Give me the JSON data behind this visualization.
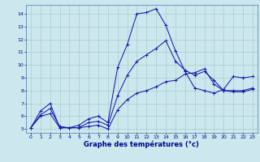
{
  "xlabel": "Graphe des températures (°c)",
  "ylim": [
    4.7,
    14.7
  ],
  "xlim": [
    -0.5,
    23.5
  ],
  "yticks": [
    5,
    6,
    7,
    8,
    9,
    10,
    11,
    12,
    13,
    14
  ],
  "xticks": [
    0,
    1,
    2,
    3,
    4,
    5,
    6,
    7,
    8,
    9,
    10,
    11,
    12,
    13,
    14,
    15,
    16,
    17,
    18,
    19,
    20,
    21,
    22,
    23
  ],
  "bg_color": "#cce8ee",
  "grid_color": "#aacccc",
  "line_color": "#1a1aaa",
  "line1_x": [
    0,
    1,
    2,
    3,
    4,
    5,
    6,
    7,
    8,
    9,
    10,
    11,
    12,
    13,
    14,
    15,
    16,
    17,
    18,
    19,
    20,
    21,
    22,
    23
  ],
  "line1_y": [
    5.1,
    6.4,
    7.0,
    5.1,
    5.1,
    5.3,
    5.8,
    6.0,
    5.5,
    9.8,
    11.6,
    14.0,
    14.1,
    14.4,
    13.1,
    11.1,
    9.5,
    8.2,
    8.0,
    7.8,
    8.1,
    9.1,
    9.0,
    9.1
  ],
  "line2_x": [
    0,
    1,
    2,
    3,
    4,
    5,
    6,
    7,
    8,
    9,
    10,
    11,
    12,
    13,
    14,
    15,
    16,
    17,
    18,
    19,
    20,
    21,
    22,
    23
  ],
  "line2_y": [
    5.1,
    6.1,
    6.6,
    5.2,
    5.1,
    5.1,
    5.5,
    5.6,
    5.3,
    7.6,
    9.2,
    10.3,
    10.8,
    11.3,
    11.9,
    10.3,
    9.6,
    9.2,
    9.5,
    8.8,
    8.0,
    7.9,
    7.9,
    8.1
  ],
  "line3_x": [
    0,
    1,
    2,
    3,
    4,
    5,
    6,
    7,
    8,
    9,
    10,
    11,
    12,
    13,
    14,
    15,
    16,
    17,
    18,
    19,
    20,
    21,
    22,
    23
  ],
  "line3_y": [
    5.1,
    6.0,
    6.2,
    5.1,
    5.1,
    5.1,
    5.2,
    5.3,
    5.0,
    6.5,
    7.3,
    7.8,
    8.0,
    8.3,
    8.7,
    8.8,
    9.3,
    9.4,
    9.7,
    8.5,
    8.0,
    8.0,
    8.0,
    8.2
  ]
}
